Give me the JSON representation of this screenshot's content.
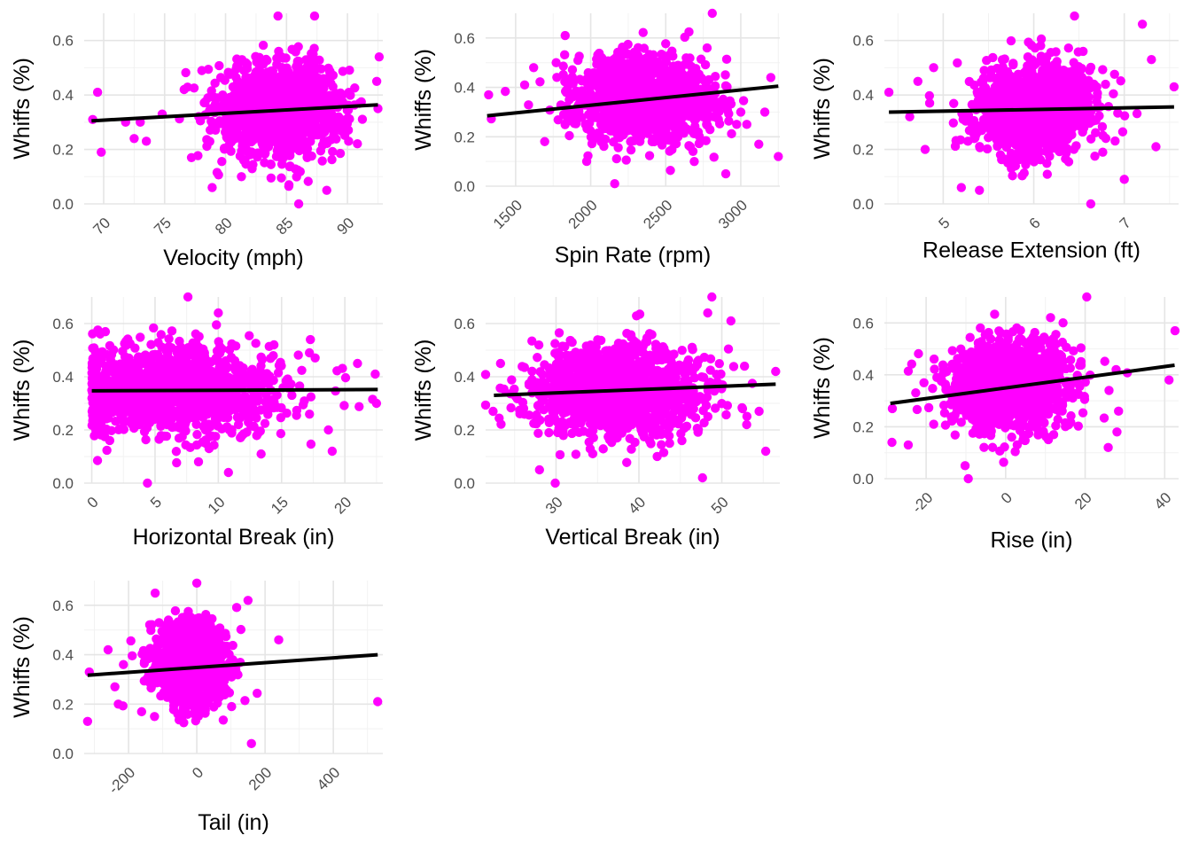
{
  "colors": {
    "points": "#ff00ff",
    "trend": "#000000",
    "grid_major": "#e5e5e5",
    "grid_minor": "#f2f2f2",
    "tick_text": "#4d4d4d"
  },
  "chart_data": [
    {
      "type": "scatter",
      "xlabel": "Velocity (mph)",
      "ylabel": "Whiffs (%)",
      "xlim": [
        68.4,
        92.9
      ],
      "ylim": [
        0,
        0.7
      ],
      "xticks": [
        70,
        75,
        80,
        85,
        90
      ],
      "xtick_labels": [
        "70",
        "75",
        "80",
        "85",
        "90"
      ],
      "yticks": [
        0,
        0.2,
        0.4,
        0.6
      ],
      "ytick_labels": [
        "0.0",
        "0.2",
        "0.4",
        "0.6"
      ],
      "x_ticklabel_rotation": 45,
      "grid": true,
      "cloud": {
        "n": 1200,
        "center": [
          84.5,
          0.35
        ],
        "spread": [
          2.6,
          0.085
        ]
      },
      "outliers": [
        [
          69.1,
          0.31
        ],
        [
          69.5,
          0.41
        ],
        [
          69.8,
          0.19
        ],
        [
          71.8,
          0.3
        ],
        [
          72.5,
          0.24
        ],
        [
          73.0,
          0.3
        ],
        [
          73.5,
          0.23
        ],
        [
          74.8,
          0.33
        ],
        [
          76.6,
          0.42
        ],
        [
          77.2,
          0.17
        ],
        [
          78.9,
          0.06
        ],
        [
          81.3,
          0.1
        ],
        [
          85.2,
          0.07
        ],
        [
          86.0,
          0.0
        ],
        [
          88.3,
          0.05
        ],
        [
          87.3,
          0.69
        ],
        [
          84.3,
          0.69
        ],
        [
          92.6,
          0.54
        ],
        [
          92.4,
          0.45
        ],
        [
          92.5,
          0.35
        ]
      ],
      "trend": [
        [
          69,
          0.305
        ],
        [
          92.5,
          0.364
        ]
      ]
    },
    {
      "type": "scatter",
      "xlabel": "Spin Rate (rpm)",
      "ylabel": "Whiffs (%)",
      "xlim": [
        1300,
        3260
      ],
      "ylim": [
        0,
        0.7
      ],
      "xticks": [
        1500,
        2000,
        2500,
        3000
      ],
      "xtick_labels": [
        "1500",
        "2000",
        "2500",
        "3000"
      ],
      "yticks": [
        0,
        0.2,
        0.4,
        0.6
      ],
      "ytick_labels": [
        "0.0",
        "0.2",
        "0.4",
        "0.6"
      ],
      "x_ticklabel_rotation": 45,
      "grid": true,
      "cloud": {
        "n": 1200,
        "center": [
          2350,
          0.35
        ],
        "spread": [
          230,
          0.085
        ]
      },
      "outliers": [
        [
          1320,
          0.37
        ],
        [
          1560,
          0.41
        ],
        [
          1620,
          0.48
        ],
        [
          1770,
          0.5
        ],
        [
          1830,
          0.61
        ],
        [
          1860,
          0.42
        ],
        [
          2160,
          0.01
        ],
        [
          2690,
          0.1
        ],
        [
          2900,
          0.05
        ],
        [
          2810,
          0.7
        ],
        [
          3000,
          0.3
        ],
        [
          3040,
          0.25
        ],
        [
          3120,
          0.17
        ],
        [
          3200,
          0.44
        ],
        [
          3250,
          0.12
        ],
        [
          3160,
          0.3
        ]
      ],
      "trend": [
        [
          1310,
          0.285
        ],
        [
          3250,
          0.405
        ]
      ]
    },
    {
      "type": "scatter",
      "xlabel": "Release Extension (ft)",
      "ylabel": "Whiffs (%)",
      "xlim": [
        4.35,
        7.6
      ],
      "ylim": [
        0,
        0.7
      ],
      "xticks": [
        5,
        6,
        7
      ],
      "xtick_labels": [
        "5",
        "6",
        "7"
      ],
      "yticks": [
        0,
        0.2,
        0.4,
        0.6
      ],
      "ytick_labels": [
        "0.0",
        "0.2",
        "0.4",
        "0.6"
      ],
      "x_ticklabel_rotation": 45,
      "grid": true,
      "cloud": {
        "n": 1200,
        "center": [
          6.0,
          0.35
        ],
        "spread": [
          0.34,
          0.085
        ]
      },
      "outliers": [
        [
          4.4,
          0.41
        ],
        [
          4.63,
          0.32
        ],
        [
          4.72,
          0.45
        ],
        [
          4.8,
          0.2
        ],
        [
          4.85,
          0.37
        ],
        [
          5.2,
          0.06
        ],
        [
          5.4,
          0.05
        ],
        [
          6.63,
          0.0
        ],
        [
          6.45,
          0.69
        ],
        [
          7.2,
          0.66
        ],
        [
          7.3,
          0.53
        ],
        [
          7.35,
          0.21
        ],
        [
          7.55,
          0.43
        ],
        [
          7.0,
          0.09
        ]
      ],
      "trend": [
        [
          4.4,
          0.337
        ],
        [
          7.55,
          0.356
        ]
      ]
    },
    {
      "type": "scatter",
      "xlabel": "Horizontal Break (in)",
      "ylabel": "Whiffs (%)",
      "xlim": [
        -0.6,
        23.0
      ],
      "ylim": [
        0,
        0.7
      ],
      "xticks": [
        0,
        5,
        10,
        15,
        20
      ],
      "xtick_labels": [
        "0",
        "5",
        "10",
        "15",
        "20"
      ],
      "yticks": [
        0,
        0.2,
        0.4,
        0.6
      ],
      "ytick_labels": [
        "0.0",
        "0.2",
        "0.4",
        "0.6"
      ],
      "x_ticklabel_rotation": 45,
      "grid": true,
      "cloud": {
        "n": 1300,
        "center": [
          6.5,
          0.35
        ],
        "spread": [
          4.4,
          0.085
        ],
        "xmin": 0
      },
      "outliers": [
        [
          7.6,
          0.7
        ],
        [
          10.0,
          0.64
        ],
        [
          4.4,
          0.0
        ],
        [
          10.8,
          0.04
        ],
        [
          19.0,
          0.12
        ],
        [
          21.0,
          0.45
        ],
        [
          22.4,
          0.41
        ],
        [
          22.5,
          0.3
        ],
        [
          18.7,
          0.2
        ],
        [
          17.2,
          0.49
        ]
      ],
      "trend": [
        [
          0,
          0.347
        ],
        [
          22.6,
          0.352
        ]
      ]
    },
    {
      "type": "scatter",
      "xlabel": "Vertical Break (in)",
      "ylabel": "Whiffs (%)",
      "xlim": [
        21.5,
        57.0
      ],
      "ylim": [
        0,
        0.7
      ],
      "xticks": [
        30,
        40,
        50
      ],
      "xtick_labels": [
        "30",
        "40",
        "50"
      ],
      "yticks": [
        0,
        0.2,
        0.4,
        0.6
      ],
      "ytick_labels": [
        "0.0",
        "0.2",
        "0.4",
        "0.6"
      ],
      "x_ticklabel_rotation": 45,
      "grid": true,
      "cloud": {
        "n": 1300,
        "center": [
          37.5,
          0.35
        ],
        "spread": [
          5.3,
          0.085
        ]
      },
      "outliers": [
        [
          22.4,
          0.27
        ],
        [
          23.3,
          0.45
        ],
        [
          28.0,
          0.05
        ],
        [
          29.9,
          0.0
        ],
        [
          48.8,
          0.7
        ],
        [
          48.3,
          0.64
        ],
        [
          51.1,
          0.61
        ],
        [
          52.5,
          0.28
        ],
        [
          54.5,
          0.27
        ],
        [
          55.3,
          0.12
        ],
        [
          56.5,
          0.42
        ],
        [
          53.0,
          0.22
        ]
      ],
      "trend": [
        [
          22.5,
          0.33
        ],
        [
          56.5,
          0.372
        ]
      ]
    },
    {
      "type": "scatter",
      "xlabel": "Rise (in)",
      "ylabel": "Whiffs (%)",
      "xlim": [
        -30.5,
        43.5
      ],
      "ylim": [
        0,
        0.7
      ],
      "xticks": [
        -20,
        0,
        20,
        40
      ],
      "xtick_labels": [
        "-20",
        "0",
        "20",
        "40"
      ],
      "yticks": [
        0,
        0.2,
        0.4,
        0.6
      ],
      "ytick_labels": [
        "0.0",
        "0.2",
        "0.4",
        "0.6"
      ],
      "x_ticklabel_rotation": 45,
      "grid": true,
      "cloud": {
        "n": 1200,
        "center": [
          1.0,
          0.36
        ],
        "spread": [
          7.8,
          0.085
        ]
      },
      "outliers": [
        [
          -28.5,
          0.27
        ],
        [
          -28.6,
          0.14
        ],
        [
          -24.5,
          0.13
        ],
        [
          -10.2,
          0.05
        ],
        [
          -9.4,
          0.0
        ],
        [
          20.4,
          0.7
        ],
        [
          28.4,
          0.26
        ],
        [
          28.0,
          0.18
        ],
        [
          25.8,
          0.12
        ],
        [
          26.0,
          0.34
        ],
        [
          41.1,
          0.38
        ],
        [
          42.6,
          0.57
        ]
      ],
      "trend": [
        [
          -29,
          0.29
        ],
        [
          42.5,
          0.437
        ]
      ]
    },
    {
      "type": "scatter",
      "xlabel": "Tail (in)",
      "ylabel": "Whiffs (%)",
      "xlim": [
        -330,
        545
      ],
      "ylim": [
        0,
        0.7
      ],
      "xticks": [
        -200,
        0,
        200,
        400
      ],
      "xtick_labels": [
        "-200",
        "0",
        "200",
        "400"
      ],
      "yticks": [
        0,
        0.2,
        0.4,
        0.6
      ],
      "ytick_labels": [
        "0.0",
        "0.2",
        "0.4",
        "0.6"
      ],
      "x_ticklabel_rotation": 45,
      "grid": true,
      "cloud": {
        "n": 1000,
        "center": [
          -20,
          0.36
        ],
        "spread": [
          52,
          0.085
        ]
      },
      "outliers": [
        [
          -315,
          0.33
        ],
        [
          -320,
          0.13
        ],
        [
          -260,
          0.42
        ],
        [
          -240,
          0.27
        ],
        [
          -230,
          0.2
        ],
        [
          -215,
          0.36
        ],
        [
          150,
          0.62
        ],
        [
          160,
          0.04
        ],
        [
          240,
          0.46
        ],
        [
          530,
          0.21
        ],
        [
          0,
          0.69
        ]
      ],
      "trend": [
        [
          -320,
          0.317
        ],
        [
          530,
          0.4
        ]
      ]
    }
  ]
}
